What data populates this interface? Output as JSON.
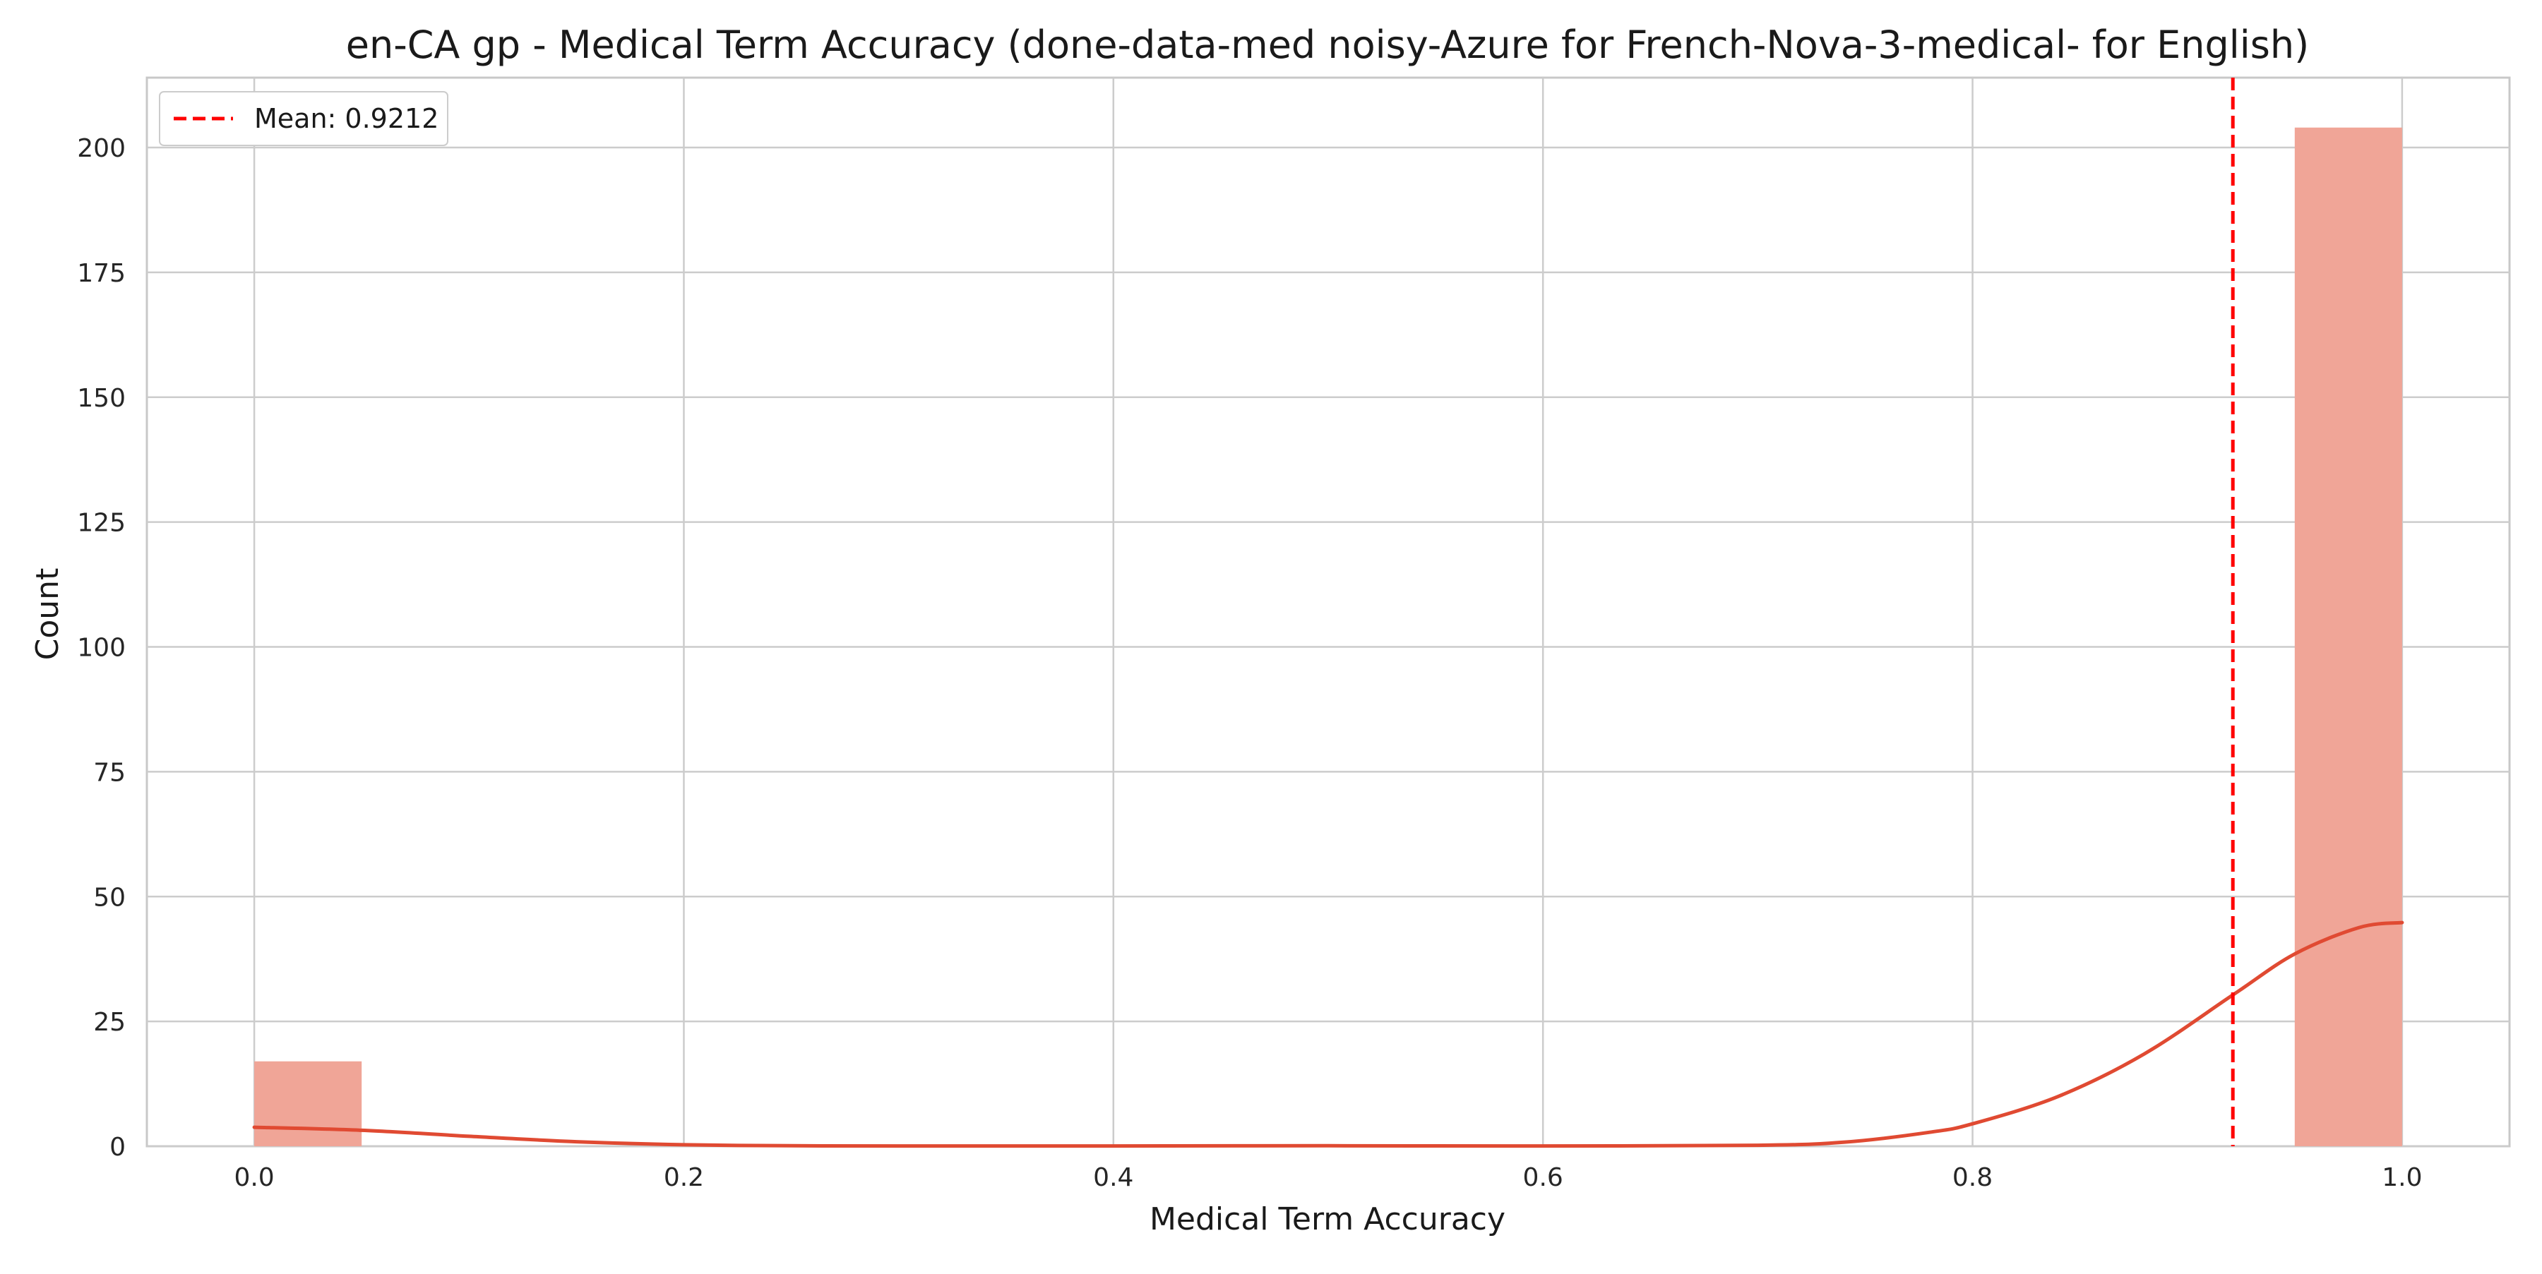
{
  "chart_data": {
    "type": "bar",
    "title": "en-CA gp - Medical Term Accuracy (done-data-med noisy-Azure for French-Nova-3-medical- for English)",
    "xlabel": "Medical Term Accuracy",
    "ylabel": "Count",
    "xlim": [
      -0.05,
      1.05
    ],
    "ylim": [
      0,
      214
    ],
    "x_ticks": [
      0.0,
      0.2,
      0.4,
      0.6,
      0.8,
      1.0
    ],
    "x_tick_labels": [
      "0.0",
      "0.2",
      "0.4",
      "0.6",
      "0.8",
      "1.0"
    ],
    "y_ticks": [
      0,
      25,
      50,
      75,
      100,
      125,
      150,
      175,
      200
    ],
    "y_tick_labels": [
      "0",
      "25",
      "50",
      "75",
      "100",
      "125",
      "150",
      "175",
      "200"
    ],
    "grid": true,
    "legend_position": "upper-left",
    "bins": [
      {
        "x0": 0.0,
        "x1": 0.05,
        "count": 17
      },
      {
        "x0": 0.95,
        "x1": 1.0,
        "count": 204
      }
    ],
    "kde": {
      "x": [
        0.0,
        0.05,
        0.1,
        0.15,
        0.2,
        0.25,
        0.3,
        0.4,
        0.5,
        0.6,
        0.7,
        0.74,
        0.78,
        0.8,
        0.84,
        0.88,
        0.9212,
        0.95,
        0.98,
        1.0
      ],
      "y": [
        3.8,
        3.2,
        2.0,
        0.9,
        0.3,
        0.1,
        0.05,
        0.05,
        0.1,
        0.05,
        0.2,
        0.8,
        2.8,
        4.5,
        10.0,
        18.5,
        30.3,
        38.5,
        43.8,
        44.8
      ]
    },
    "mean": {
      "value": 0.9212,
      "label": "Mean: 0.9212"
    },
    "colors": {
      "bar_fill": "#f0a597",
      "kde_line": "#e04a32",
      "mean_line": "#ff0000",
      "grid": "#cccccc",
      "axes_edge": "#c8c8c8"
    }
  }
}
